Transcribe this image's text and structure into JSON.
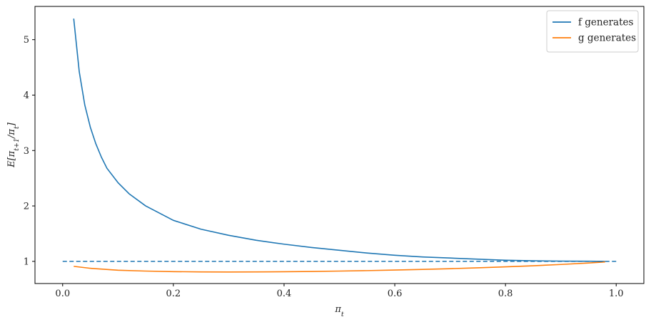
{
  "chart_data": {
    "type": "line",
    "xlabel": "π_t",
    "ylabel": "E[π_{t+1}/π_t]",
    "xlim": [
      -0.05,
      1.05
    ],
    "ylim": [
      0.6,
      5.6
    ],
    "xticks": [
      0.0,
      0.2,
      0.4,
      0.6,
      0.8,
      1.0
    ],
    "xtick_labels": [
      "0.0",
      "0.2",
      "0.4",
      "0.6",
      "0.8",
      "1.0"
    ],
    "yticks": [
      1,
      2,
      3,
      4,
      5
    ],
    "ytick_labels": [
      "1",
      "2",
      "3",
      "4",
      "5"
    ],
    "grid": false,
    "legend": "top-right",
    "series": [
      {
        "name": "f generates",
        "color": "#1f77b4",
        "style": "solid",
        "x": [
          0.02,
          0.03,
          0.04,
          0.05,
          0.06,
          0.07,
          0.08,
          0.1,
          0.12,
          0.15,
          0.2,
          0.25,
          0.3,
          0.35,
          0.4,
          0.45,
          0.5,
          0.55,
          0.6,
          0.65,
          0.7,
          0.75,
          0.8,
          0.85,
          0.9,
          0.95,
          0.98
        ],
        "y": [
          5.38,
          4.42,
          3.82,
          3.42,
          3.12,
          2.88,
          2.68,
          2.42,
          2.22,
          2.0,
          1.74,
          1.58,
          1.47,
          1.38,
          1.31,
          1.25,
          1.2,
          1.15,
          1.11,
          1.08,
          1.06,
          1.04,
          1.02,
          1.01,
          1.005,
          1.002,
          1.0
        ]
      },
      {
        "name": "g generates",
        "color": "#ff7f0e",
        "style": "solid",
        "x": [
          0.02,
          0.05,
          0.1,
          0.15,
          0.2,
          0.25,
          0.3,
          0.35,
          0.4,
          0.45,
          0.5,
          0.55,
          0.6,
          0.65,
          0.7,
          0.75,
          0.8,
          0.85,
          0.9,
          0.95,
          0.98
        ],
        "y": [
          0.91,
          0.875,
          0.84,
          0.825,
          0.815,
          0.81,
          0.808,
          0.81,
          0.813,
          0.818,
          0.825,
          0.833,
          0.843,
          0.855,
          0.868,
          0.884,
          0.901,
          0.921,
          0.944,
          0.971,
          0.99
        ]
      },
      {
        "color": "#1f77b4",
        "style": "dashed",
        "x": [
          0.0,
          1.0
        ],
        "y": [
          1.0,
          1.0
        ]
      }
    ]
  }
}
